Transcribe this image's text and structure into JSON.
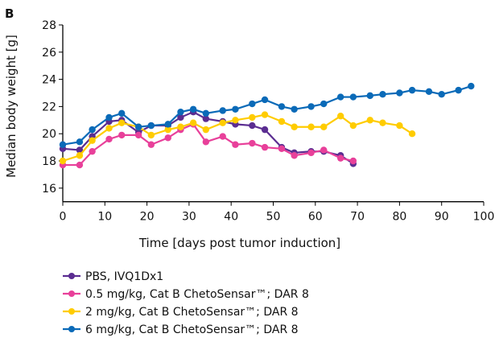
{
  "panel_label": "B",
  "chart_data": {
    "type": "line",
    "xlabel": "Time [days post tumor induction]",
    "ylabel": "Median body weight [g]",
    "xlim": [
      0,
      100
    ],
    "ylim": [
      15,
      28
    ],
    "xticks": [
      0,
      10,
      20,
      30,
      40,
      50,
      60,
      70,
      80,
      90,
      100
    ],
    "yticks": [
      16,
      18,
      20,
      22,
      24,
      26,
      28
    ],
    "grid": false,
    "legend_position": "bottom",
    "series": [
      {
        "name": "PBS, IVQ1Dx1",
        "color": "#5b2d91",
        "x": [
          0,
          4,
          7,
          11,
          14,
          18,
          21,
          25,
          28,
          31,
          34,
          38,
          41,
          45,
          48,
          52,
          55,
          59,
          62,
          66,
          69
        ],
        "y": [
          18.9,
          18.8,
          19.8,
          20.9,
          21.0,
          20.1,
          20.6,
          20.6,
          21.2,
          21.6,
          21.1,
          20.9,
          20.7,
          20.6,
          20.3,
          19.0,
          18.6,
          18.7,
          18.7,
          18.4,
          17.8
        ]
      },
      {
        "name": "0.5 mg/kg, Cat B ChetoSensar™; DAR 8",
        "color": "#e8409a",
        "x": [
          0,
          4,
          7,
          11,
          14,
          18,
          21,
          25,
          28,
          31,
          34,
          38,
          41,
          45,
          48,
          52,
          55,
          59,
          62,
          66,
          69
        ],
        "y": [
          17.7,
          17.7,
          18.7,
          19.6,
          19.9,
          19.9,
          19.2,
          19.7,
          20.3,
          20.7,
          19.4,
          19.8,
          19.2,
          19.3,
          19.0,
          18.9,
          18.4,
          18.6,
          18.8,
          18.2,
          18.0
        ]
      },
      {
        "name": "2 mg/kg, Cat B ChetoSensar™; DAR 8",
        "color": "#ffcc00",
        "x": [
          0,
          4,
          7,
          11,
          14,
          18,
          21,
          25,
          28,
          31,
          34,
          38,
          41,
          45,
          48,
          52,
          55,
          59,
          62,
          66,
          69,
          73,
          76,
          80,
          83
        ],
        "y": [
          18.0,
          18.4,
          19.5,
          20.4,
          20.8,
          20.5,
          19.9,
          20.3,
          20.5,
          20.8,
          20.3,
          20.8,
          21.0,
          21.2,
          21.4,
          20.9,
          20.5,
          20.5,
          20.5,
          21.3,
          20.6,
          21.0,
          20.8,
          20.6,
          20.0
        ]
      },
      {
        "name": "6 mg/kg, Cat B ChetoSensar™; DAR 8",
        "color": "#0a6ab8",
        "x": [
          0,
          4,
          7,
          11,
          14,
          18,
          21,
          25,
          28,
          31,
          34,
          38,
          41,
          45,
          48,
          52,
          55,
          59,
          62,
          66,
          69,
          73,
          76,
          80,
          83,
          87,
          90,
          94,
          97
        ],
        "y": [
          19.2,
          19.4,
          20.3,
          21.2,
          21.5,
          20.5,
          20.6,
          20.7,
          21.6,
          21.8,
          21.5,
          21.7,
          21.8,
          22.2,
          22.5,
          22.0,
          21.8,
          22.0,
          22.2,
          22.7,
          22.7,
          22.8,
          22.9,
          23.0,
          23.2,
          23.1,
          22.9,
          23.2,
          23.5
        ]
      }
    ]
  }
}
